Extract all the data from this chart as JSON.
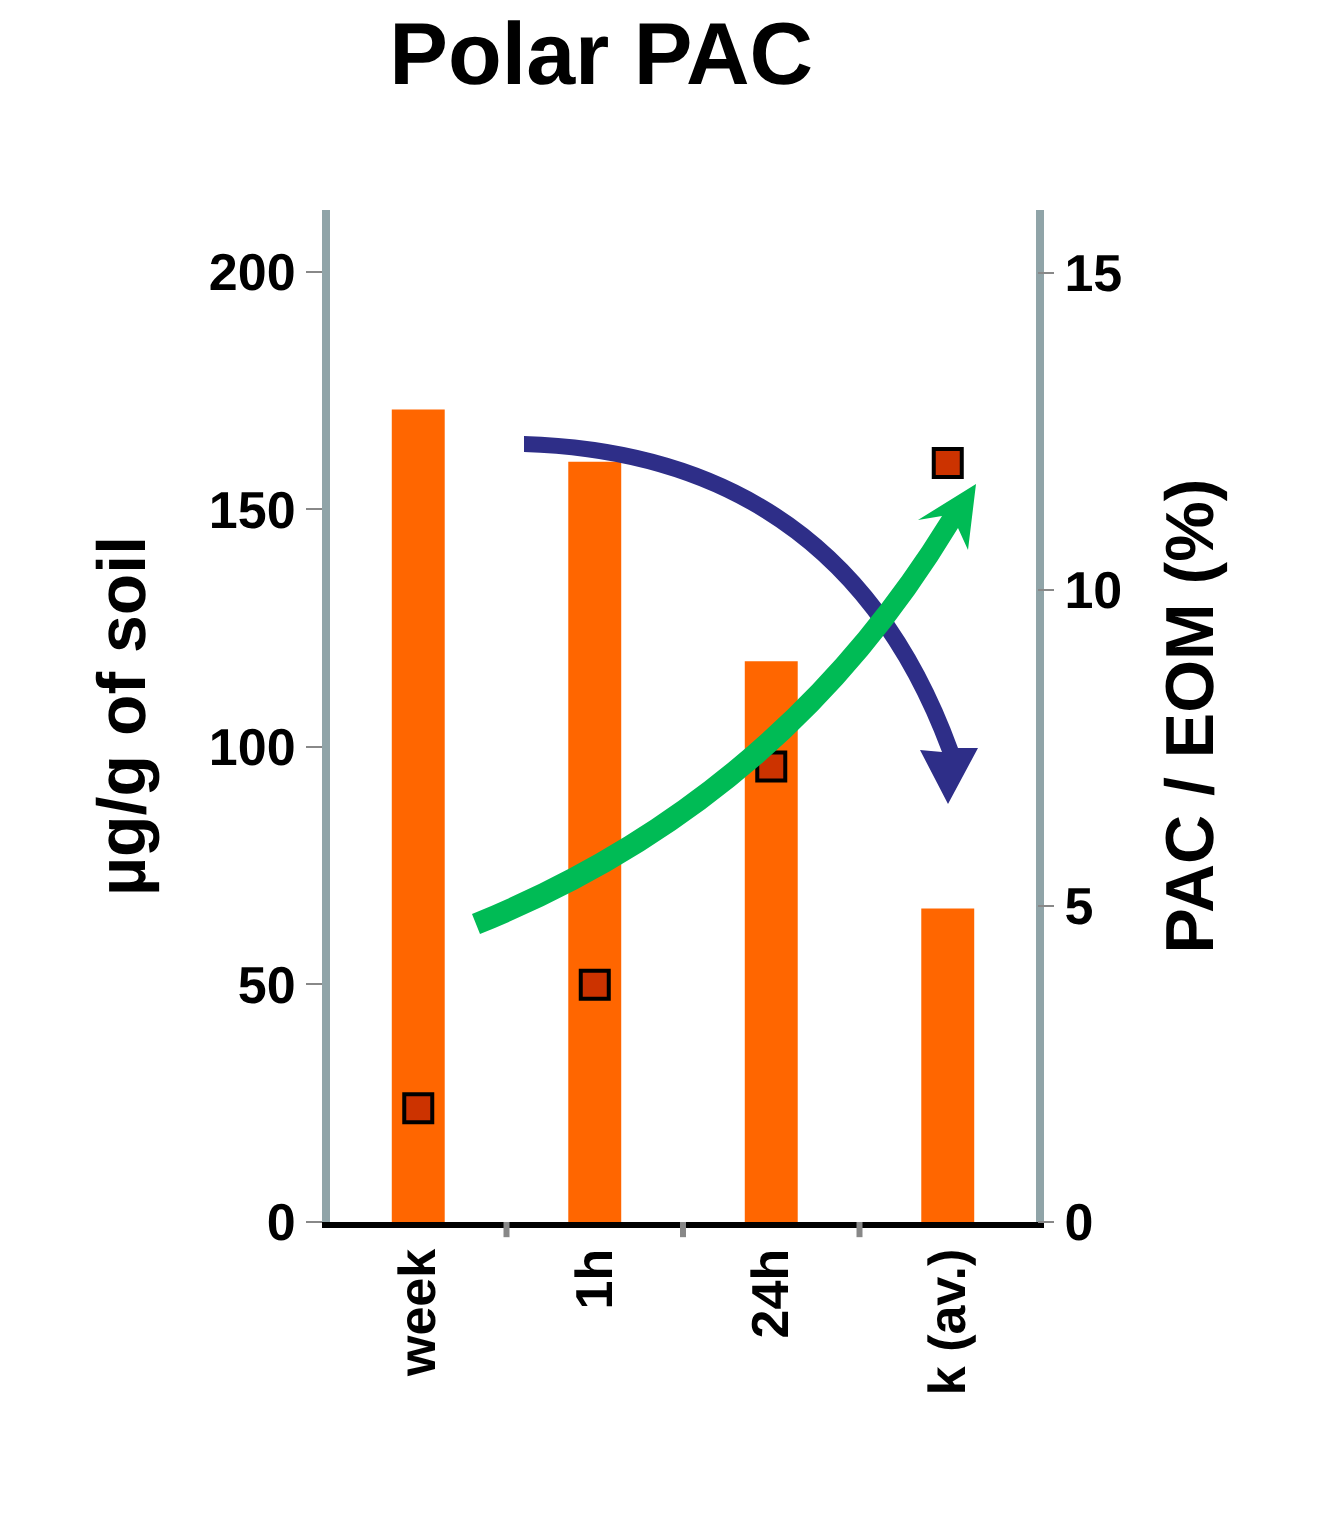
{
  "chart_data": {
    "type": "bar",
    "title": "Polar PAC",
    "ylabel": "µg/g of soil",
    "y2label": "PAC / EOM (%)",
    "categories": [
      "week",
      "1h",
      "24h",
      "k (av.)"
    ],
    "series": [
      {
        "color": "#ff6600",
        "values": [
          171,
          160,
          118,
          66
        ]
      },
      {
        "type": "scatter",
        "axis": "y2",
        "color": "#cc3300",
        "marker": "square",
        "values": [
          1.8,
          3.75,
          7.2,
          12.0
        ]
      }
    ],
    "ylim": [
      0,
      213
    ],
    "yticks": [
      0,
      50,
      100,
      150,
      200
    ],
    "y2lim": [
      0,
      16
    ],
    "y2ticks": [
      0,
      5,
      10,
      15
    ],
    "grid": false,
    "legend": false
  }
}
